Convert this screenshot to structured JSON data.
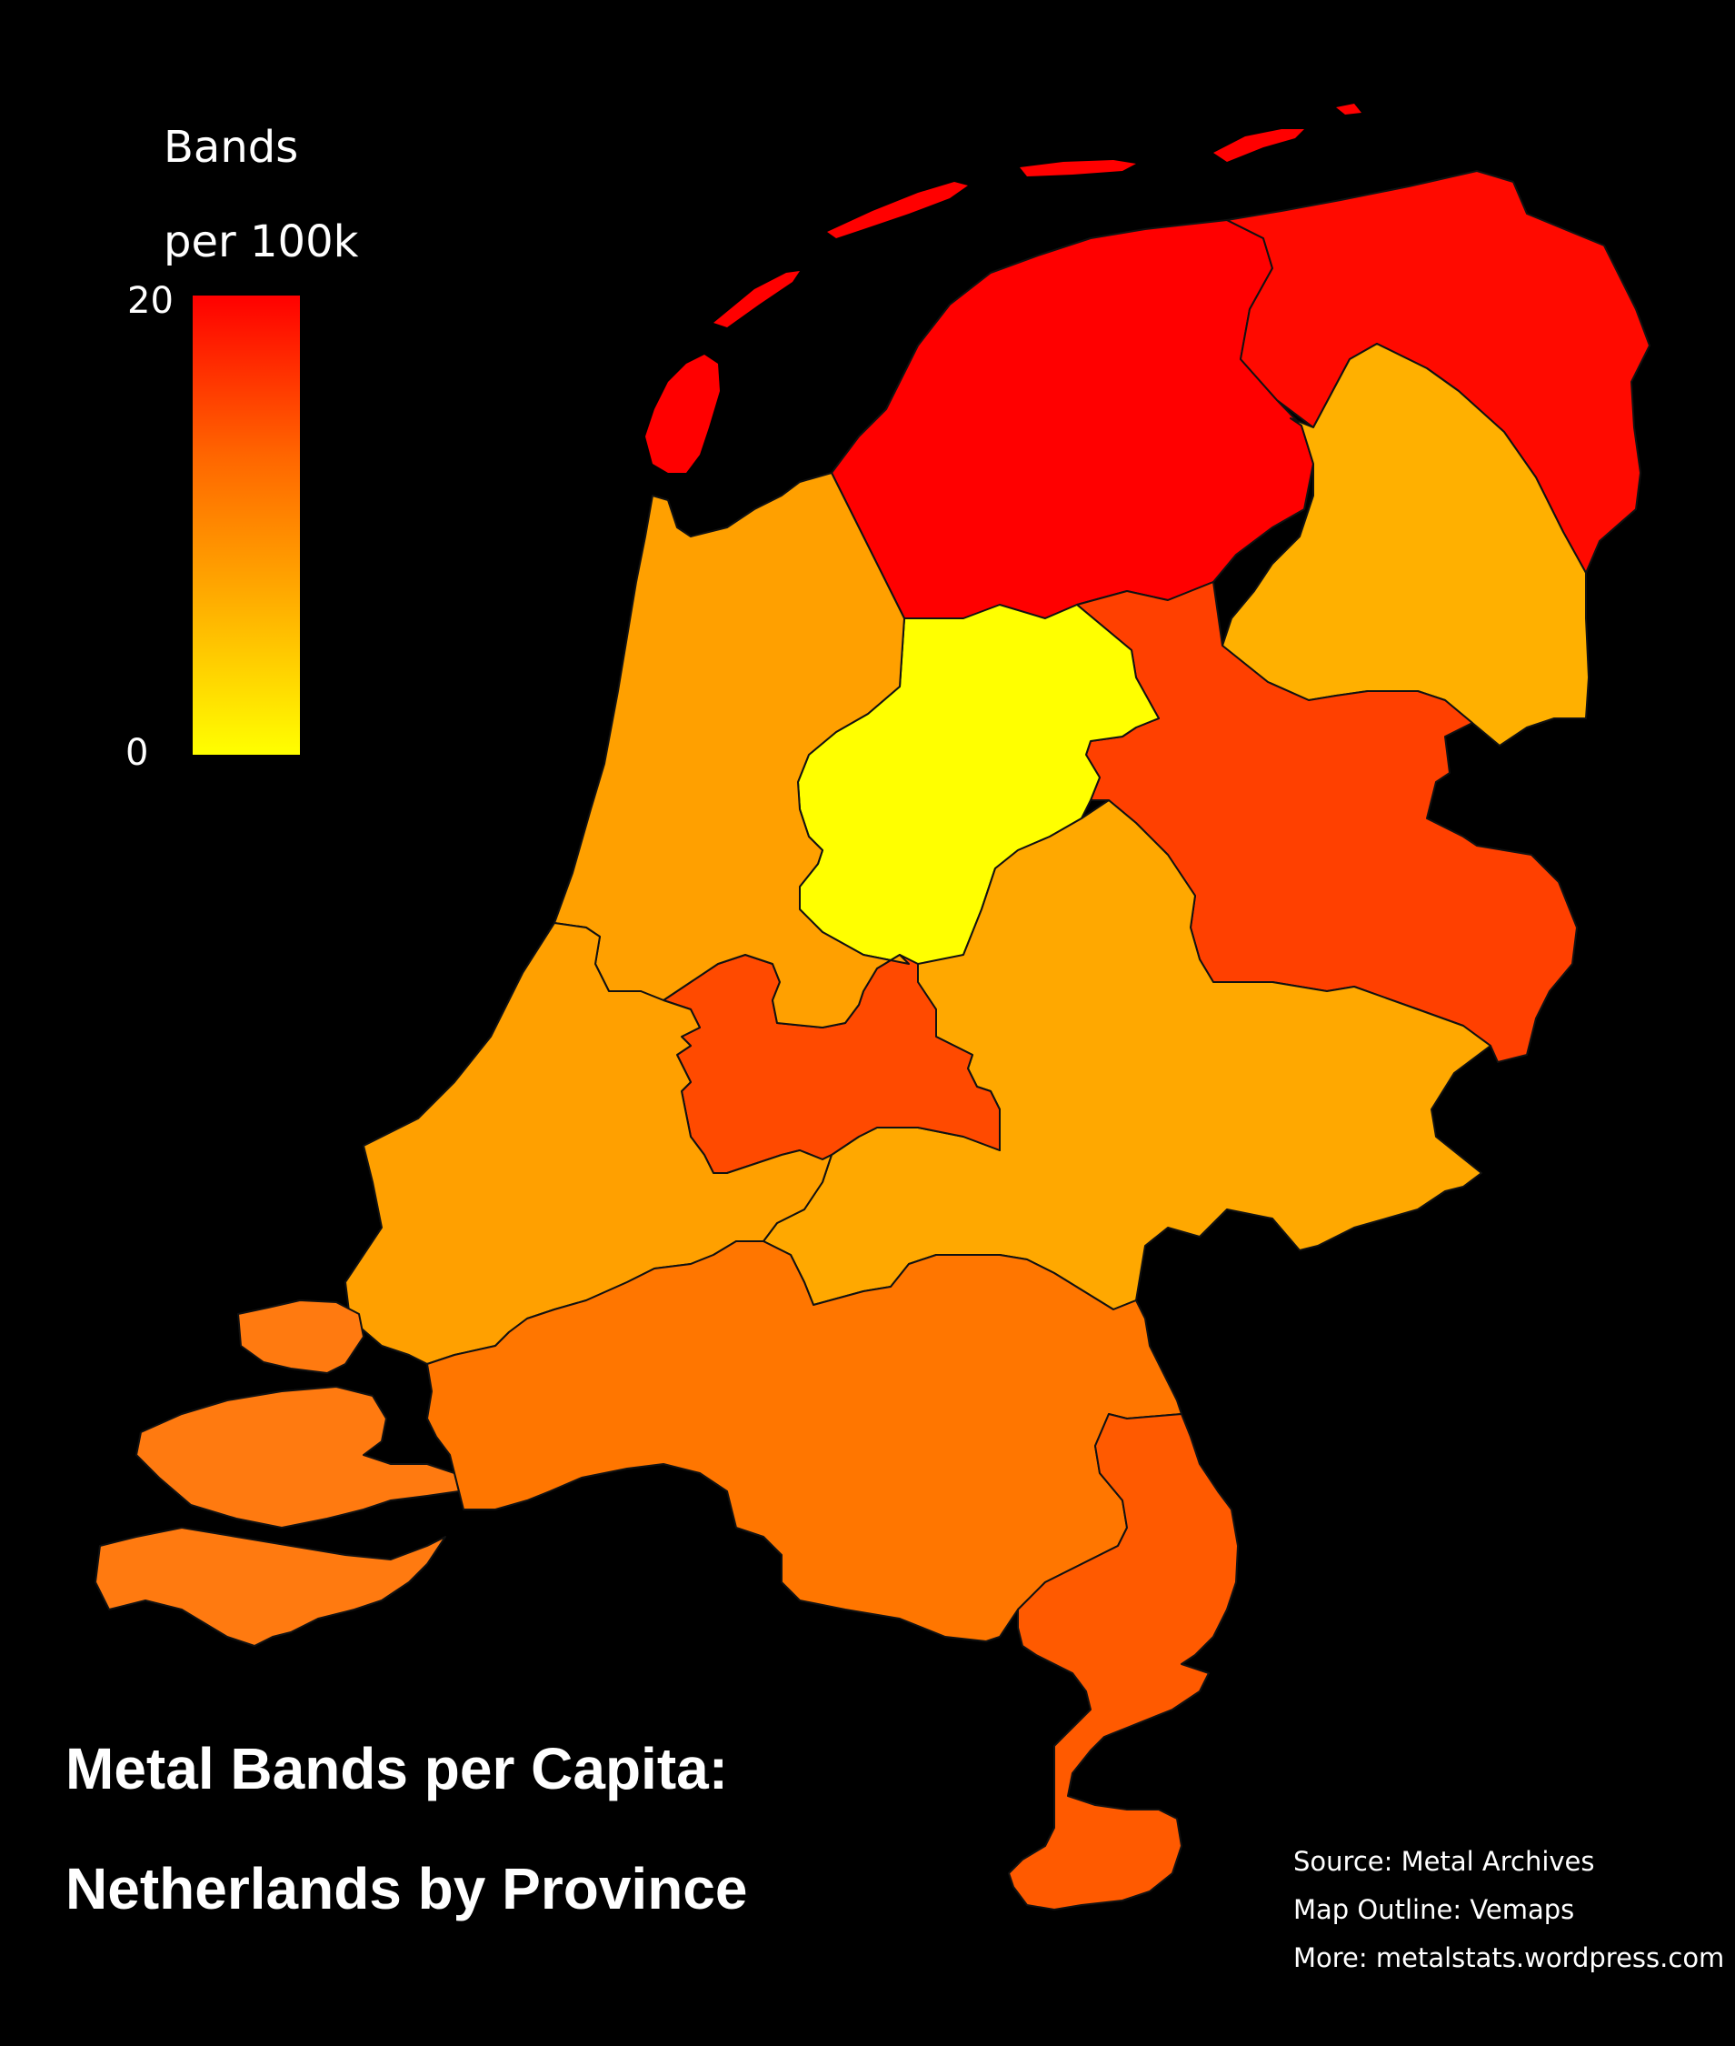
{
  "title": {
    "line1": "Metal Bands per Capita:",
    "line2": "Netherlands by Province"
  },
  "legend": {
    "title_line1": "Bands",
    "title_line2": "per 100k",
    "max_label": "20",
    "min_label": "0",
    "max_value": 20,
    "min_value": 0,
    "color_stops": [
      "#ffff00",
      "#ffaa00",
      "#ff6600",
      "#ff0000"
    ]
  },
  "credits": {
    "source": "Source: Metal Archives",
    "outline": "Map Outline: Vemaps",
    "more": "More: metalstats.wordpress.com"
  },
  "provinces": [
    {
      "id": "friesland",
      "color": "#ff0000"
    },
    {
      "id": "groningen",
      "color": "#ff0a00"
    },
    {
      "id": "drenthe",
      "color": "#ffb000"
    },
    {
      "id": "overijssel",
      "color": "#ff4000"
    },
    {
      "id": "flevoland",
      "color": "#ffff00"
    },
    {
      "id": "gelderland",
      "color": "#ffa800"
    },
    {
      "id": "utrecht",
      "color": "#ff4a00"
    },
    {
      "id": "noord-holland",
      "color": "#ffa000"
    },
    {
      "id": "zuid-holland",
      "color": "#ffa000"
    },
    {
      "id": "zeeland",
      "color": "#ff7a10"
    },
    {
      "id": "noord-brabant",
      "color": "#ff7600"
    },
    {
      "id": "limburg",
      "color": "#ff5a00"
    }
  ]
}
